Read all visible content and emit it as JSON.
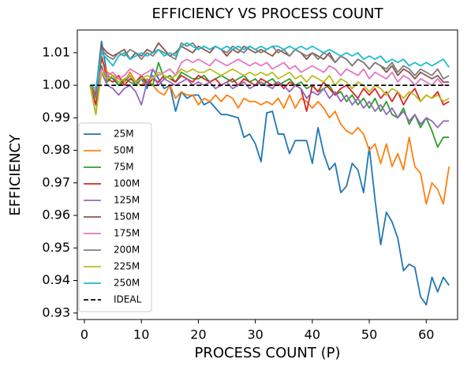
{
  "chart_data": {
    "type": "line",
    "title": "EFFICIENCY VS PROCESS COUNT",
    "x_label": "PROCESS COUNT (P)",
    "y_label": "EFFICIENCY",
    "x": [
      1,
      2,
      3,
      4,
      5,
      6,
      7,
      8,
      9,
      10,
      11,
      12,
      13,
      14,
      15,
      16,
      17,
      18,
      19,
      20,
      21,
      22,
      23,
      24,
      25,
      26,
      27,
      28,
      29,
      30,
      31,
      32,
      33,
      34,
      35,
      36,
      37,
      38,
      39,
      40,
      41,
      42,
      43,
      44,
      45,
      46,
      47,
      48,
      49,
      50,
      51,
      52,
      53,
      54,
      55,
      56,
      57,
      58,
      59,
      60,
      61,
      62,
      63,
      64
    ],
    "xlim": [
      -1.25,
      65.5
    ],
    "xticks": [
      0,
      10,
      20,
      30,
      40,
      50,
      60
    ],
    "ylim": [
      0.928,
      1.017
    ],
    "yticks": [
      0.93,
      0.94,
      0.95,
      0.96,
      0.97,
      0.98,
      0.99,
      {
        "value": 1,
        "label": "1.00"
      },
      1.01
    ],
    "grid": false,
    "legend": "lower left",
    "series": [
      {
        "name": "25M",
        "color": "#1f77b4",
        "values": [
          1.0,
          0.998,
          1.0135,
          1.003,
          1.002,
          1.0,
          1.001,
          1.003,
          1.0,
          1.002,
          0.999,
          1.005,
          1.002,
          0.999,
          1.0,
          0.992,
          0.998,
          0.996,
          0.997,
          0.997,
          0.994,
          0.995,
          0.993,
          0.991,
          0.991,
          0.9905,
          0.99,
          0.984,
          0.985,
          0.982,
          0.9765,
          0.9915,
          0.992,
          0.985,
          0.985,
          0.979,
          0.983,
          0.983,
          0.983,
          0.976,
          0.987,
          0.979,
          0.974,
          0.976,
          0.967,
          0.969,
          0.976,
          0.974,
          0.967,
          0.981,
          0.965,
          0.951,
          0.961,
          0.958,
          0.953,
          0.943,
          0.945,
          0.944,
          0.935,
          0.9325,
          0.941,
          0.9365,
          0.941,
          0.9385
        ]
      },
      {
        "name": "50M",
        "color": "#ff7f0e",
        "values": [
          1.0,
          0.998,
          1.008,
          1.004,
          1.003,
          1.002,
          1.001,
          1.004,
          1.001,
          1.0,
          1.002,
          1.0,
          0.998,
          0.997,
          1.0,
          0.996,
          0.998,
          0.997,
          0.997,
          0.994,
          0.996,
          0.995,
          0.997,
          0.995,
          0.997,
          0.996,
          0.993,
          0.996,
          0.995,
          0.995,
          0.994,
          0.995,
          0.994,
          0.996,
          0.993,
          0.997,
          0.993,
          0.996,
          0.995,
          0.993,
          0.995,
          0.993,
          0.99,
          0.992,
          0.988,
          0.986,
          0.985,
          0.987,
          0.985,
          0.98,
          0.982,
          0.976,
          0.982,
          0.975,
          0.979,
          0.974,
          0.984,
          0.975,
          0.973,
          0.9635,
          0.97,
          0.968,
          0.9635,
          0.975
        ]
      },
      {
        "name": "75M",
        "color": "#2ca02c",
        "values": [
          1.0,
          0.991,
          1.006,
          1.001,
          1.003,
          1.0,
          1.002,
          1.001,
          1.0,
          1.003,
          1.001,
          1.0,
          1.007,
          1.002,
          1.003,
          1.001,
          1.004,
          1.003,
          1.002,
          1.002,
          1.003,
          1.001,
          1.002,
          1.003,
          1.002,
          1.001,
          1.002,
          1.003,
          1.001,
          1.002,
          1.0,
          1.001,
          1.002,
          1.0,
          1.001,
          1.002,
          1.0,
          1.001,
          0.999,
          1.0,
          0.998,
          0.999,
          1.0,
          0.997,
          0.998,
          0.995,
          0.997,
          0.994,
          0.996,
          0.993,
          0.996,
          0.992,
          0.995,
          0.991,
          0.99,
          0.993,
          0.988,
          0.991,
          0.987,
          0.99,
          0.986,
          0.981,
          0.984,
          0.984
        ]
      },
      {
        "name": "100M",
        "color": "#d62728",
        "values": [
          1.0,
          0.994,
          1.009,
          1.002,
          1.001,
          1.003,
          1.0,
          1.002,
          1.001,
          1.003,
          1.0,
          1.002,
          1.001,
          1.003,
          1.002,
          1.001,
          1.003,
          1.002,
          1.001,
          1.003,
          1.002,
          1.001,
          1.002,
          1.0,
          1.001,
          1.002,
          1.0,
          1.002,
          1.001,
          1.0,
          1.002,
          1.001,
          1.0,
          1.001,
          0.999,
          1.001,
          1.0,
          0.999,
          0.992,
          1.0,
          0.998,
          1.001,
          0.999,
          0.997,
          0.999,
          1.0,
          0.998,
          0.996,
          0.999,
          0.997,
          0.999,
          0.996,
          0.998,
          0.995,
          0.998,
          0.994,
          0.997,
          0.999,
          0.995,
          0.997,
          0.996,
          0.998,
          0.994,
          0.995
        ]
      },
      {
        "name": "125M",
        "color": "#9467bd",
        "values": [
          1.0,
          0.996,
          1.004,
          1.0,
          0.999,
          0.997,
          0.999,
          1.0,
          0.998,
          0.994,
          1.001,
          1.003,
          1.0,
          1.002,
          1.001,
          1.0,
          1.001,
          1.002,
          1.0,
          1.001,
          1.0,
          1.001,
          0.999,
          1.0,
          1.001,
          0.999,
          1.0,
          1.001,
          0.999,
          1.0,
          1.001,
          1.0,
          0.999,
          1.001,
          1.0,
          0.998,
          1.0,
          0.999,
          0.996,
          0.998,
          0.997,
          0.999,
          0.996,
          0.998,
          0.995,
          0.997,
          0.994,
          0.996,
          0.993,
          0.995,
          0.992,
          0.994,
          0.991,
          0.993,
          0.99,
          0.992,
          0.989,
          0.991,
          0.988,
          0.99,
          0.989,
          0.987,
          0.989,
          0.989
        ]
      },
      {
        "name": "150M",
        "color": "#8c564b",
        "values": [
          1.0,
          0.997,
          1.012,
          1.01,
          1.009,
          1.01,
          1.011,
          1.008,
          1.01,
          1.009,
          1.011,
          1.01,
          1.013,
          1.011,
          1.009,
          1.01,
          1.012,
          1.011,
          1.01,
          1.012,
          1.011,
          1.01,
          1.012,
          1.011,
          1.009,
          1.011,
          1.01,
          1.012,
          1.011,
          1.01,
          1.011,
          1.01,
          1.009,
          1.011,
          1.01,
          1.009,
          1.011,
          1.01,
          1.008,
          1.01,
          1.009,
          1.008,
          1.01,
          1.007,
          1.009,
          1.008,
          1.006,
          1.008,
          1.007,
          1.005,
          1.007,
          1.006,
          1.004,
          1.006,
          1.003,
          1.005,
          1.004,
          1.002,
          1.004,
          1.003,
          1.002,
          1.003,
          1.001,
          1.001
        ]
      },
      {
        "name": "175M",
        "color": "#e377c2",
        "values": [
          1.0,
          0.999,
          1.005,
          1.003,
          1.004,
          1.002,
          1.003,
          1.005,
          1.004,
          1.003,
          1.004,
          1.005,
          1.003,
          1.004,
          1.005,
          1.003,
          1.007,
          1.008,
          1.007,
          1.008,
          1.007,
          1.006,
          1.008,
          1.007,
          1.006,
          1.007,
          1.008,
          1.007,
          1.006,
          1.007,
          1.006,
          1.007,
          1.005,
          1.006,
          1.007,
          1.005,
          1.006,
          1.004,
          1.005,
          1.006,
          1.005,
          1.004,
          1.006,
          1.005,
          1.003,
          1.005,
          1.004,
          1.003,
          1.005,
          1.002,
          1.004,
          1.003,
          1.002,
          1.004,
          1.001,
          1.003,
          1.002,
          1.0,
          1.002,
          1.001,
          1.0,
          1.002,
          1.0,
          1.0
        ]
      },
      {
        "name": "200M",
        "color": "#7f7f7f",
        "values": [
          1.0,
          0.996,
          1.011,
          1.009,
          1.008,
          1.01,
          1.009,
          1.011,
          1.01,
          1.008,
          1.01,
          1.009,
          1.011,
          1.01,
          1.009,
          1.008,
          1.013,
          1.012,
          1.013,
          1.011,
          1.012,
          1.011,
          1.012,
          1.011,
          1.01,
          1.012,
          1.011,
          1.01,
          1.012,
          1.011,
          1.01,
          1.011,
          1.012,
          1.01,
          1.011,
          1.009,
          1.011,
          1.01,
          1.009,
          1.01,
          1.008,
          1.01,
          1.009,
          1.007,
          1.009,
          1.008,
          1.006,
          1.008,
          1.007,
          1.005,
          1.007,
          1.006,
          1.005,
          1.007,
          1.004,
          1.006,
          1.005,
          1.003,
          1.005,
          1.004,
          1.003,
          1.005,
          1.002,
          1.003
        ]
      },
      {
        "name": "225M",
        "color": "#bcbd22",
        "values": [
          1.0,
          0.991,
          1.004,
          1.002,
          1.003,
          1.001,
          1.002,
          1.003,
          1.001,
          1.002,
          1.003,
          1.002,
          1.004,
          1.003,
          1.002,
          1.003,
          1.005,
          1.004,
          1.005,
          1.004,
          1.004,
          1.005,
          1.004,
          1.003,
          1.004,
          1.005,
          1.004,
          1.003,
          1.004,
          1.003,
          1.004,
          1.003,
          1.004,
          1.002,
          1.003,
          1.004,
          1.002,
          1.003,
          1.001,
          1.003,
          1.002,
          1.001,
          1.003,
          1.0,
          1.002,
          1.001,
          0.999,
          1.001,
          1.0,
          0.998,
          1.0,
          0.999,
          0.997,
          0.999,
          0.998,
          0.996,
          0.998,
          0.997,
          0.995,
          0.997,
          0.996,
          0.997,
          0.995,
          0.996
        ]
      },
      {
        "name": "250M",
        "color": "#17becf",
        "values": [
          1.0,
          0.999,
          1.01,
          1.008,
          1.006,
          1.009,
          1.01,
          1.008,
          1.009,
          1.01,
          1.009,
          1.01,
          1.011,
          1.009,
          1.01,
          1.009,
          1.012,
          1.013,
          1.012,
          1.011,
          1.012,
          1.011,
          1.012,
          1.011,
          1.012,
          1.011,
          1.012,
          1.011,
          1.012,
          1.011,
          1.012,
          1.011,
          1.012,
          1.012,
          1.011,
          1.012,
          1.011,
          1.012,
          1.011,
          1.012,
          1.011,
          1.01,
          1.011,
          1.01,
          1.009,
          1.01,
          1.009,
          1.01,
          1.008,
          1.009,
          1.008,
          1.009,
          1.007,
          1.008,
          1.007,
          1.008,
          1.006,
          1.007,
          1.006,
          1.007,
          1.006,
          1.007,
          1.008,
          1.0055
        ]
      },
      {
        "name": "IDEAL",
        "color": "#000000",
        "dash": "dashed",
        "x": [
          1,
          64
        ],
        "values": [
          1,
          1
        ]
      }
    ]
  }
}
